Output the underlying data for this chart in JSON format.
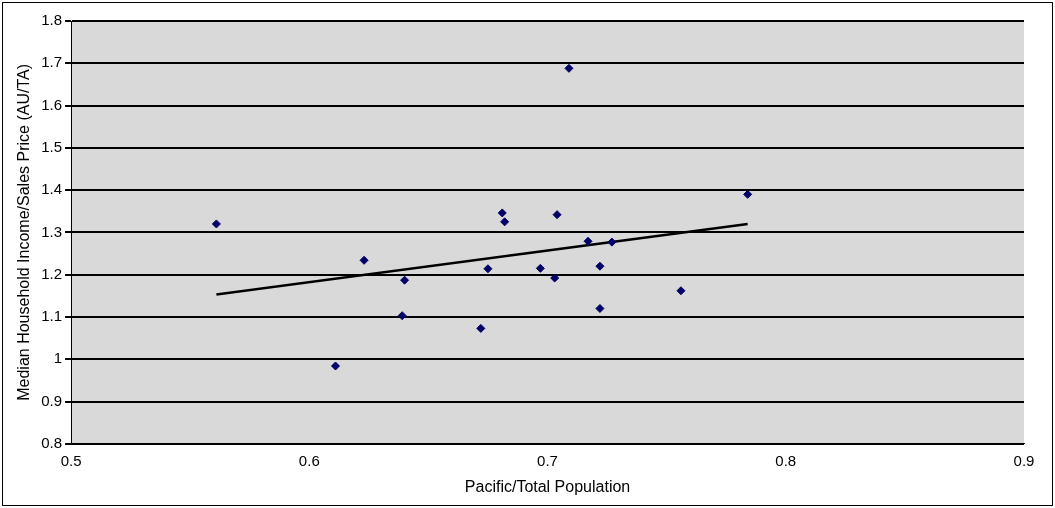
{
  "chart_data": {
    "type": "scatter",
    "xlabel": "Pacific/Total Population",
    "ylabel": "Median Household Income/Sales Price (AU/TA)",
    "xlim": [
      0.5,
      0.9
    ],
    "xticks": [
      0.5,
      0.6,
      0.7,
      0.8,
      0.9
    ],
    "ylim": [
      0.8,
      1.8
    ],
    "yticks": [
      0.8,
      0.9,
      1,
      1.1,
      1.2,
      1.3,
      1.4,
      1.5,
      1.6,
      1.7,
      1.8
    ],
    "grid": "y",
    "legend": false,
    "marker": "diamond",
    "series": [
      {
        "type": "scatter",
        "color": "#000066",
        "x": [
          0.561,
          0.623,
          0.64,
          0.639,
          0.611,
          0.672,
          0.675,
          0.681,
          0.682,
          0.704,
          0.697,
          0.703,
          0.709,
          0.717,
          0.727,
          0.722,
          0.722,
          0.756,
          0.784
        ],
        "values": [
          1.32,
          1.234,
          1.187,
          1.103,
          0.984,
          1.073,
          1.214,
          1.346,
          1.325,
          1.342,
          1.215,
          1.192,
          1.688,
          1.279,
          1.277,
          1.22,
          1.12,
          1.162,
          1.39
        ]
      },
      {
        "type": "line",
        "color": "#000000",
        "marker": "none",
        "x": [
          0.561,
          0.784
        ],
        "values": [
          1.153,
          1.32
        ]
      }
    ]
  }
}
